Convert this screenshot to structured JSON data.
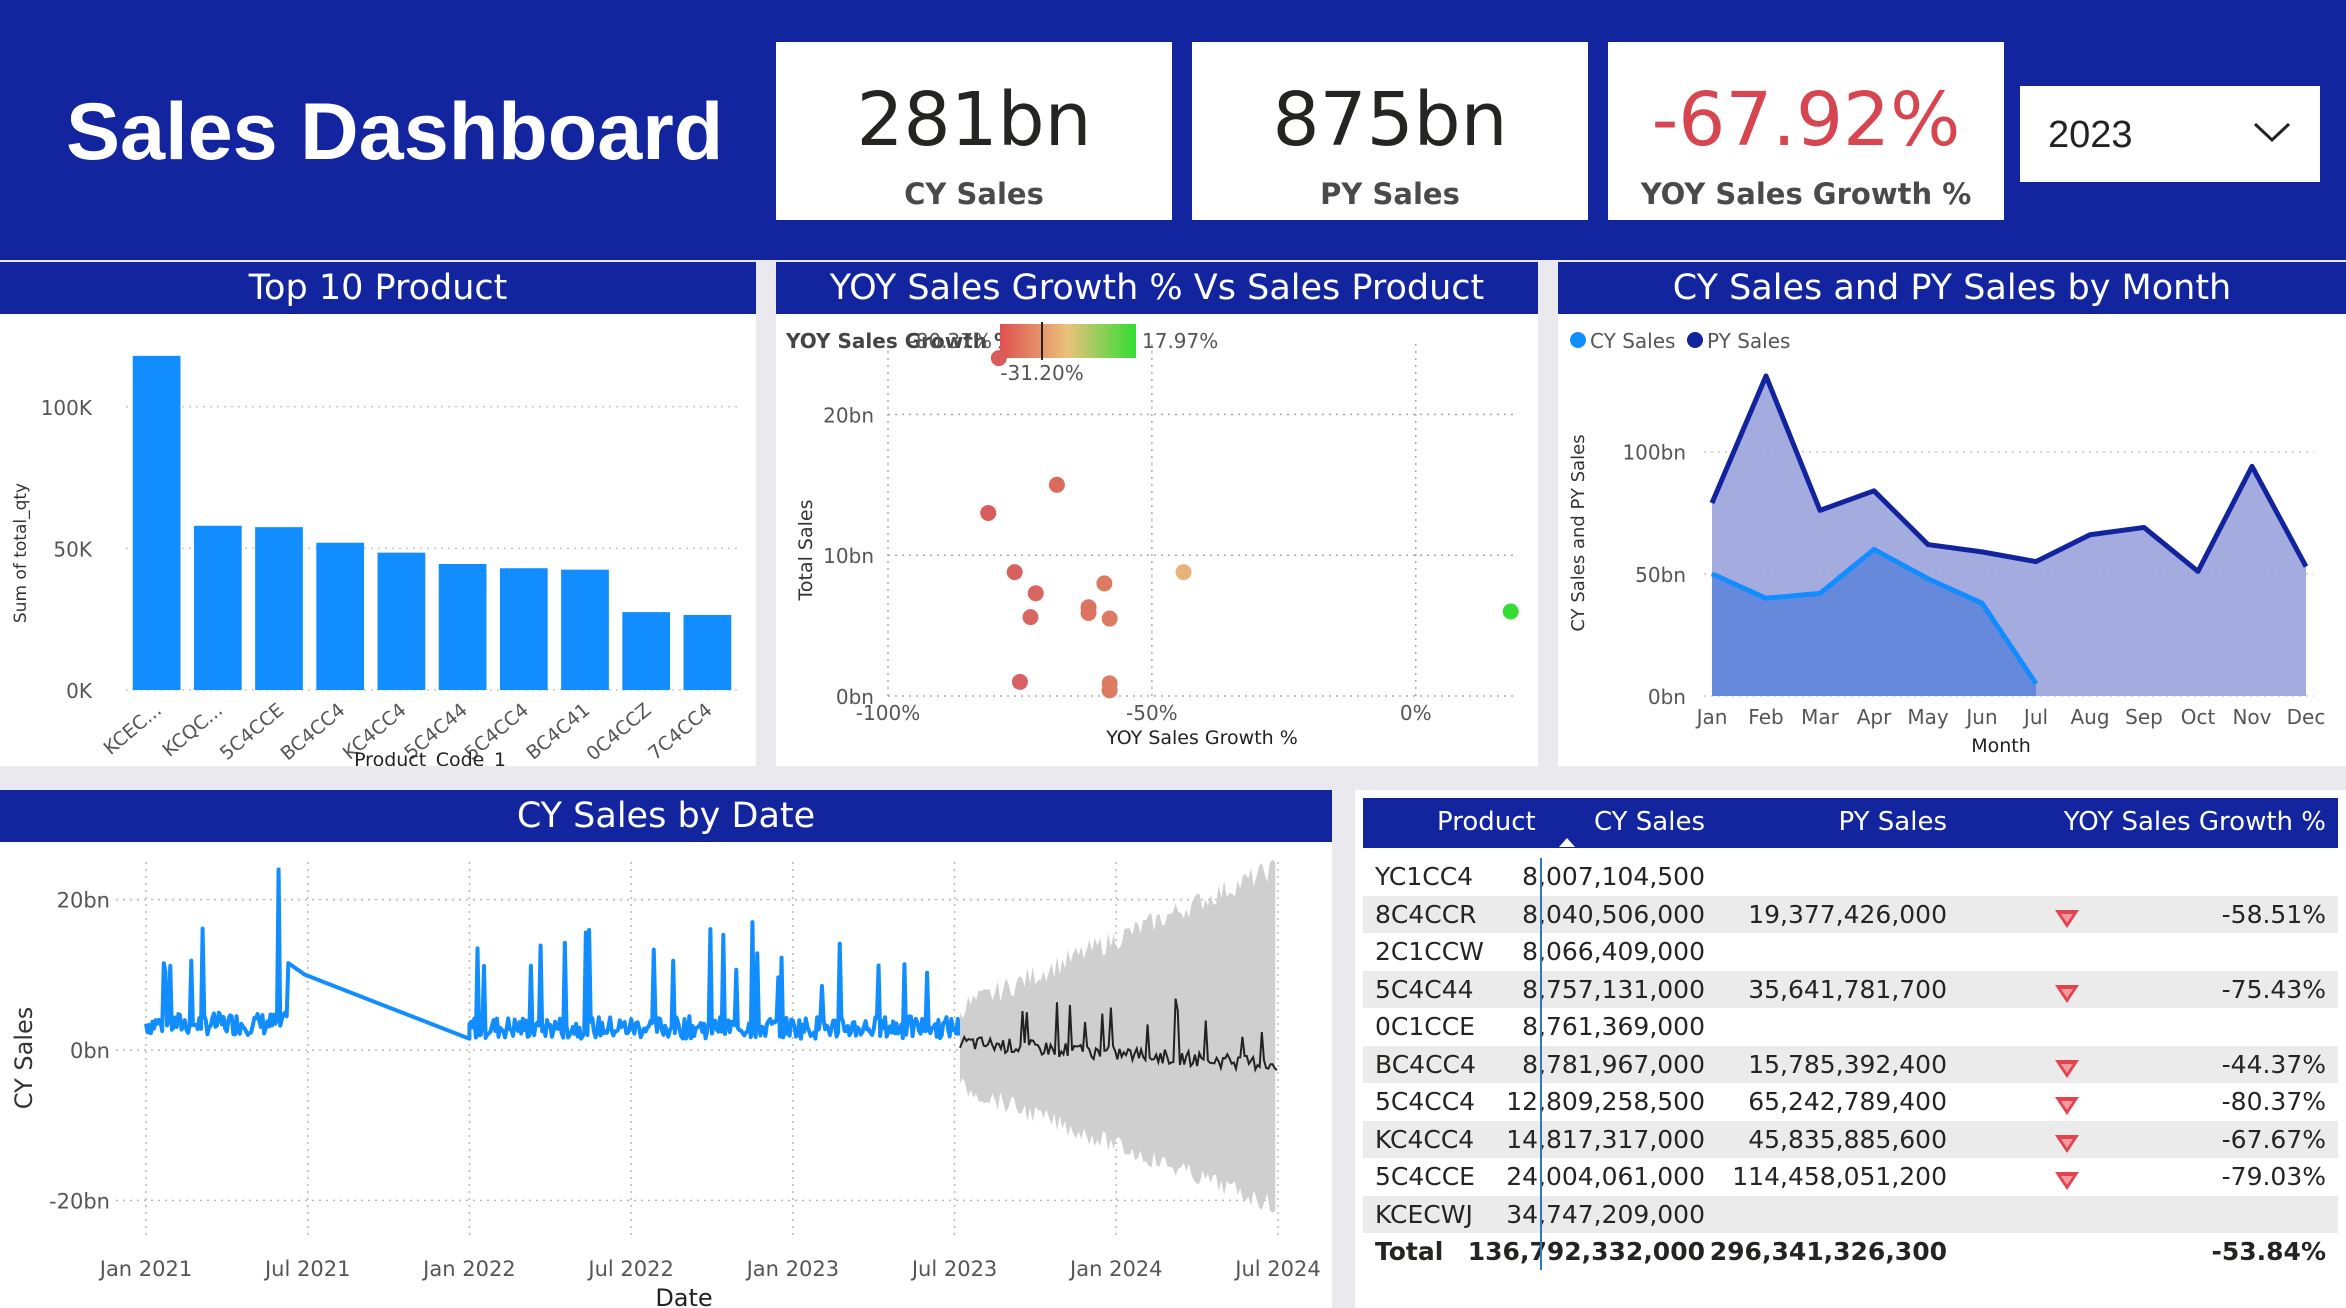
{
  "header": {
    "title": "Sales Dashboard"
  },
  "kpis": [
    {
      "value": "281bn",
      "label": "CY Sales"
    },
    {
      "value": "875bn",
      "label": "PY Sales"
    },
    {
      "value": "-67.92%",
      "label": "YOY Sales Growth %",
      "color": "#d64550"
    }
  ],
  "slicer": {
    "value": "2023",
    "icon": "chevron-down-icon"
  },
  "colors": {
    "header": "#13259e",
    "cy": "#118dff",
    "py": "#12239e",
    "negative": "#d64550"
  },
  "panels": {
    "top10": {
      "title": "Top 10 Product"
    },
    "scatter": {
      "title": "YOY Sales Growth % Vs Sales Product"
    },
    "monthly": {
      "title": "CY Sales and PY Sales by Month"
    },
    "bydate": {
      "title": "CY Sales by Date"
    }
  },
  "chart_data": [
    {
      "type": "bar",
      "title": "Top 10 Product",
      "xlabel": "Product_Code_1",
      "ylabel": "Sum of total_qty",
      "categories": [
        "KCEC...",
        "KCQC...",
        "5C4CCE",
        "BC4CC4",
        "KC4CC4",
        "5C4C44",
        "5C4CC4",
        "BC4C41",
        "0C4CCZ",
        "7C4CC4"
      ],
      "values": [
        118000,
        58000,
        57500,
        52000,
        48500,
        44500,
        43000,
        42500,
        27500,
        26500
      ],
      "yticks": [
        "0K",
        "50K",
        "100K"
      ],
      "ylim": [
        0,
        125000
      ],
      "grid": true
    },
    {
      "type": "scatter",
      "title": "YOY Sales Growth % Vs Sales Product",
      "xlabel": "YOY Sales Growth %",
      "ylabel": "Total Sales",
      "legend": {
        "title": "YOY Sales Growth %",
        "min": "-80.37%",
        "max": "17.97%",
        "mid": "-31.20%"
      },
      "xticks": [
        "-100%",
        "-50%",
        "0%"
      ],
      "yticks": [
        "0bn",
        "10bn",
        "20bn"
      ],
      "xlim": [
        -100,
        19
      ],
      "ylim": [
        0,
        25
      ],
      "points": [
        {
          "x": -79,
          "y": 24.0,
          "color": "#d85c5c"
        },
        {
          "x": -81,
          "y": 13.0,
          "color": "#d85c5c"
        },
        {
          "x": -68,
          "y": 15.0,
          "color": "#da6b5c"
        },
        {
          "x": -76,
          "y": 8.8,
          "color": "#d86060"
        },
        {
          "x": -72,
          "y": 7.3,
          "color": "#d86660"
        },
        {
          "x": -73,
          "y": 5.6,
          "color": "#d86660"
        },
        {
          "x": -62,
          "y": 6.3,
          "color": "#dc7260"
        },
        {
          "x": -62,
          "y": 5.9,
          "color": "#dc7260"
        },
        {
          "x": -59,
          "y": 8.0,
          "color": "#dc7a62"
        },
        {
          "x": -58,
          "y": 5.5,
          "color": "#dc7a62"
        },
        {
          "x": -75,
          "y": 1.0,
          "color": "#d86262"
        },
        {
          "x": -58,
          "y": 0.9,
          "color": "#dc7a62"
        },
        {
          "x": -58,
          "y": 0.4,
          "color": "#dc7a62"
        },
        {
          "x": -44,
          "y": 8.8,
          "color": "#e8b37a"
        },
        {
          "x": 18,
          "y": 6.0,
          "color": "#33dd33"
        }
      ]
    },
    {
      "type": "area",
      "title": "CY Sales and PY Sales by Month",
      "xlabel": "Month",
      "ylabel": "CY Sales and PY Sales",
      "categories": [
        "Jan",
        "Feb",
        "Mar",
        "Apr",
        "May",
        "Jun",
        "Jul",
        "Aug",
        "Sep",
        "Oct",
        "Nov",
        "Dec"
      ],
      "series": [
        {
          "name": "CY Sales",
          "color": "#118dff",
          "values": [
            50,
            40,
            42,
            60,
            48,
            38,
            5,
            null,
            null,
            null,
            null,
            null
          ]
        },
        {
          "name": "PY Sales",
          "color": "#12239e",
          "values": [
            79,
            131,
            76,
            84,
            62,
            59,
            55,
            66,
            69,
            51,
            94,
            53
          ]
        }
      ],
      "yticks": [
        "0bn",
        "50bn",
        "100bn"
      ],
      "ylim": [
        0,
        140
      ]
    },
    {
      "type": "line",
      "title": "CY Sales by Date",
      "xlabel": "Date",
      "ylabel": "CY Sales",
      "xticks": [
        "Jan 2021",
        "Jul 2021",
        "Jan 2022",
        "Jul 2022",
        "Jan 2023",
        "Jul 2023",
        "Jan 2024",
        "Jul 2024"
      ],
      "yticks": [
        "-20bn",
        "0bn",
        "20bn"
      ],
      "ylim": [
        -25,
        25
      ],
      "series": [
        {
          "name": "CY Sales",
          "color": "#118dff"
        }
      ],
      "forecast": {
        "color": "#222222",
        "band_color": "#cccccc"
      }
    }
  ],
  "table": {
    "headers": [
      "Product",
      "CY Sales",
      "PY Sales",
      "YOY Sales Growth %"
    ],
    "rows": [
      {
        "product": "YC1CC4",
        "cy": "8,007,104,500",
        "py": "",
        "yoy": "",
        "flag": false
      },
      {
        "product": "8C4CCR",
        "cy": "8,040,506,000",
        "py": "19,377,426,000",
        "yoy": "-58.51%",
        "flag": true
      },
      {
        "product": "2C1CCW",
        "cy": "8,066,409,000",
        "py": "",
        "yoy": "",
        "flag": false
      },
      {
        "product": "5C4C44",
        "cy": "8,757,131,000",
        "py": "35,641,781,700",
        "yoy": "-75.43%",
        "flag": true
      },
      {
        "product": "0C1CCE",
        "cy": "8,761,369,000",
        "py": "",
        "yoy": "",
        "flag": false
      },
      {
        "product": "BC4CC4",
        "cy": "8,781,967,000",
        "py": "15,785,392,400",
        "yoy": "-44.37%",
        "flag": true
      },
      {
        "product": "5C4CC4",
        "cy": "12,809,258,500",
        "py": "65,242,789,400",
        "yoy": "-80.37%",
        "flag": true
      },
      {
        "product": "KC4CC4",
        "cy": "14,817,317,000",
        "py": "45,835,885,600",
        "yoy": "-67.67%",
        "flag": true
      },
      {
        "product": "5C4CCE",
        "cy": "24,004,061,000",
        "py": "114,458,051,200",
        "yoy": "-79.03%",
        "flag": true
      },
      {
        "product": "KCECWJ",
        "cy": "34,747,209,000",
        "py": "",
        "yoy": "",
        "flag": false
      }
    ],
    "total": {
      "product": "Total",
      "cy": "136,792,332,000",
      "py": "296,341,326,300",
      "yoy": "-53.84%"
    }
  }
}
